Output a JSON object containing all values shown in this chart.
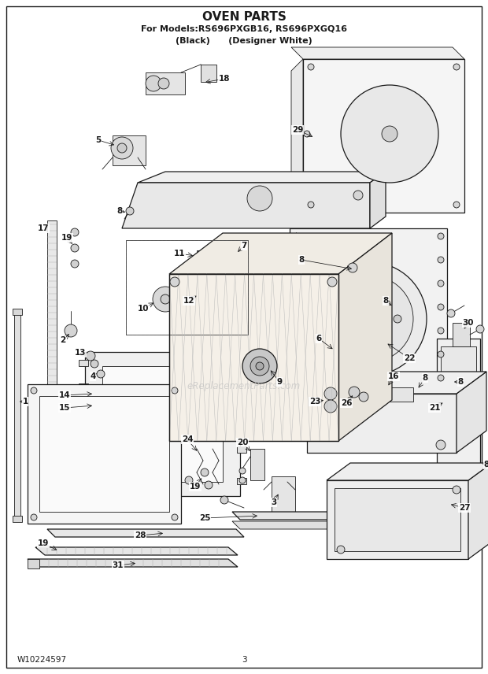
{
  "title": "OVEN PARTS",
  "subtitle1": "For Models:RS696PXGB16, RS696PXGQ16",
  "subtitle2": "(Black)      (Designer White)",
  "footer_left": "W10224597",
  "footer_center": "3",
  "bg_color": "#ffffff",
  "border_color": "#000000",
  "watermark": "eReplacementParts.com",
  "title_fontsize": 11,
  "subtitle_fontsize": 8,
  "footer_fontsize": 7.5,
  "line_color": "#1a1a1a",
  "label_fontsize": 7.5
}
